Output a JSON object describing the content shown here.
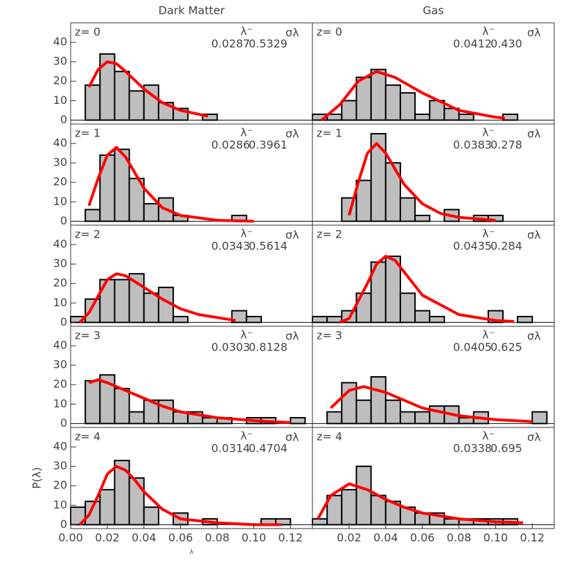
{
  "chart_data": [
    {
      "type": "histogram",
      "title": "Dark Matter",
      "annotation": "z= 0",
      "lambda_header": "λ⁻",
      "sigma_header": "σλ",
      "lambda": {
        "value": 0.0287,
        "label": "0.0287"
      },
      "sigma": {
        "value": 0.5329,
        "label": "0.5329"
      },
      "bins": [
        0,
        0.008,
        0.016,
        0.024,
        0.032,
        0.04,
        0.048,
        0.056,
        0.064,
        0.072,
        0.08,
        0.088,
        0.096,
        0.104,
        0.112,
        0.12,
        0.128
      ],
      "values": [
        0,
        18,
        34,
        25,
        15,
        18,
        9,
        6,
        0,
        3,
        0,
        0,
        0,
        0,
        0,
        0
      ],
      "fit": {
        "x": [
          0.01,
          0.015,
          0.02,
          0.025,
          0.03,
          0.04,
          0.05,
          0.06,
          0.075
        ],
        "y": [
          17,
          26,
          30,
          29,
          25,
          16,
          9,
          5,
          2
        ]
      },
      "color": "#bebebe",
      "fit_color": "#ff0000",
      "xlim": [
        0,
        0.132
      ],
      "ylim": [
        -2,
        50
      ],
      "yticks": [
        0,
        10,
        20,
        30,
        40
      ]
    },
    {
      "type": "histogram",
      "title": "Gas",
      "annotation": "z= 0",
      "lambda_header": "λ⁻",
      "sigma_header": "σλ",
      "lambda": {
        "value": 0.0412,
        "label": "0.0412"
      },
      "sigma": {
        "value": 0.43,
        "label": "0.430"
      },
      "bins": [
        0,
        0.008,
        0.016,
        0.024,
        0.032,
        0.04,
        0.048,
        0.056,
        0.064,
        0.072,
        0.08,
        0.088,
        0.096,
        0.104,
        0.112,
        0.12,
        0.128
      ],
      "values": [
        3,
        3,
        10,
        22,
        26,
        18,
        14,
        3,
        10,
        6,
        3,
        0,
        0,
        3,
        0,
        0
      ],
      "fit": {
        "x": [
          0.005,
          0.015,
          0.025,
          0.035,
          0.045,
          0.06,
          0.08,
          0.1,
          0.105
        ],
        "y": [
          0,
          8,
          20,
          25,
          22,
          14,
          5,
          1.5,
          1
        ]
      },
      "color": "#bebebe",
      "fit_color": "#ff0000",
      "xlim": [
        0,
        0.132
      ],
      "ylim": [
        -2,
        50
      ]
    },
    {
      "type": "histogram",
      "annotation": "z= 1",
      "lambda_header": "λ⁻",
      "sigma_header": "σλ",
      "lambda": {
        "value": 0.0286,
        "label": "0.0286"
      },
      "sigma": {
        "value": 0.3961,
        "label": "0.3961"
      },
      "bins": [
        0,
        0.008,
        0.016,
        0.024,
        0.032,
        0.04,
        0.048,
        0.056,
        0.064,
        0.072,
        0.08,
        0.088,
        0.096,
        0.104,
        0.112,
        0.12,
        0.128
      ],
      "values": [
        0,
        6,
        34,
        37,
        22,
        9,
        12,
        3,
        0,
        0,
        0,
        3,
        0,
        0,
        0,
        0
      ],
      "fit": {
        "x": [
          0.01,
          0.015,
          0.02,
          0.025,
          0.03,
          0.04,
          0.05,
          0.06,
          0.08,
          0.1
        ],
        "y": [
          8,
          22,
          34,
          38,
          33,
          17,
          7,
          3,
          0.5,
          0
        ]
      },
      "color": "#bebebe",
      "fit_color": "#ff0000",
      "xlim": [
        0,
        0.132
      ],
      "ylim": [
        -2,
        50
      ],
      "yticks": [
        0,
        10,
        20,
        30,
        40
      ]
    },
    {
      "type": "histogram",
      "annotation": "z= 1",
      "lambda_header": "λ⁻",
      "sigma_header": "σλ",
      "lambda": {
        "value": 0.0383,
        "label": "0.0383"
      },
      "sigma": {
        "value": 0.278,
        "label": "0.278"
      },
      "bins": [
        0,
        0.008,
        0.016,
        0.024,
        0.032,
        0.04,
        0.048,
        0.056,
        0.064,
        0.072,
        0.08,
        0.088,
        0.096,
        0.104,
        0.112,
        0.12,
        0.128
      ],
      "values": [
        0,
        0,
        12,
        21,
        45,
        30,
        12,
        3,
        0,
        6,
        0,
        3,
        3,
        0,
        0,
        0
      ],
      "fit": {
        "x": [
          0.02,
          0.025,
          0.03,
          0.035,
          0.04,
          0.05,
          0.06,
          0.07,
          0.08,
          0.1
        ],
        "y": [
          3,
          20,
          35,
          40,
          35,
          19,
          9,
          4,
          2,
          0.5
        ]
      },
      "color": "#bebebe",
      "fit_color": "#ff0000",
      "xlim": [
        0,
        0.132
      ],
      "ylim": [
        -2,
        50
      ]
    },
    {
      "type": "histogram",
      "annotation": "z= 2",
      "lambda_header": "λ⁻",
      "sigma_header": "σλ",
      "lambda": {
        "value": 0.0343,
        "label": "0.0343"
      },
      "sigma": {
        "value": 0.5614,
        "label": "0.5614"
      },
      "bins": [
        0,
        0.008,
        0.016,
        0.024,
        0.032,
        0.04,
        0.048,
        0.056,
        0.064,
        0.072,
        0.08,
        0.088,
        0.096,
        0.104,
        0.112,
        0.12,
        0.128
      ],
      "values": [
        3,
        12,
        22,
        22,
        25,
        15,
        18,
        3,
        0,
        0,
        0,
        6,
        3,
        0,
        0,
        0
      ],
      "fit": {
        "x": [
          0.005,
          0.01,
          0.02,
          0.025,
          0.03,
          0.04,
          0.05,
          0.06,
          0.07,
          0.09
        ],
        "y": [
          0,
          5,
          22,
          25,
          24,
          18,
          12,
          7,
          4,
          1
        ]
      },
      "color": "#bebebe",
      "fit_color": "#ff0000",
      "xlim": [
        0,
        0.132
      ],
      "ylim": [
        -2,
        50
      ],
      "yticks": [
        0,
        10,
        20,
        30,
        40
      ]
    },
    {
      "type": "histogram",
      "annotation": "z= 2",
      "lambda_header": "λ⁻",
      "sigma_header": "σλ",
      "lambda": {
        "value": 0.0435,
        "label": "0.0435"
      },
      "sigma": {
        "value": 0.284,
        "label": "0.284"
      },
      "bins": [
        0,
        0.008,
        0.016,
        0.024,
        0.032,
        0.04,
        0.048,
        0.056,
        0.064,
        0.072,
        0.08,
        0.088,
        0.096,
        0.104,
        0.112,
        0.12,
        0.128
      ],
      "values": [
        3,
        3,
        6,
        15,
        31,
        34,
        15,
        6,
        3,
        0,
        0,
        0,
        6,
        0,
        3,
        0
      ],
      "fit": {
        "x": [
          0.015,
          0.02,
          0.03,
          0.035,
          0.04,
          0.045,
          0.05,
          0.06,
          0.08,
          0.1,
          0.11
        ],
        "y": [
          0,
          2,
          20,
          30,
          34,
          32,
          26,
          14,
          4,
          1,
          0.5
        ]
      },
      "color": "#bebebe",
      "fit_color": "#ff0000",
      "xlim": [
        0,
        0.132
      ],
      "ylim": [
        -2,
        50
      ]
    },
    {
      "type": "histogram",
      "annotation": "z= 3",
      "lambda_header": "λ⁻",
      "sigma_header": "σλ",
      "lambda": {
        "value": 0.0303,
        "label": "0.0303"
      },
      "sigma": {
        "value": 0.8128,
        "label": "0.8128"
      },
      "bins": [
        0,
        0.008,
        0.016,
        0.024,
        0.032,
        0.04,
        0.048,
        0.056,
        0.064,
        0.072,
        0.08,
        0.088,
        0.096,
        0.104,
        0.112,
        0.12,
        0.128
      ],
      "values": [
        0,
        22,
        25,
        18,
        6,
        12,
        12,
        6,
        6,
        3,
        3,
        0,
        3,
        3,
        0,
        3
      ],
      "fit": {
        "x": [
          0.01,
          0.015,
          0.02,
          0.03,
          0.04,
          0.05,
          0.06,
          0.08,
          0.1,
          0.12
        ],
        "y": [
          21,
          22.5,
          21,
          17,
          13,
          9,
          6,
          3,
          1.5,
          0.5
        ]
      },
      "color": "#bebebe",
      "fit_color": "#ff0000",
      "xlim": [
        0,
        0.132
      ],
      "ylim": [
        -2,
        50
      ],
      "yticks": [
        0,
        10,
        20,
        30,
        40
      ]
    },
    {
      "type": "histogram",
      "annotation": "z= 3",
      "lambda_header": "λ⁻",
      "sigma_header": "σλ",
      "lambda": {
        "value": 0.0405,
        "label": "0.0405"
      },
      "sigma": {
        "value": 0.625,
        "label": "0.625"
      },
      "bins": [
        0,
        0.008,
        0.016,
        0.024,
        0.032,
        0.04,
        0.048,
        0.056,
        0.064,
        0.072,
        0.08,
        0.088,
        0.096,
        0.104,
        0.112,
        0.12,
        0.128
      ],
      "values": [
        0,
        6,
        21,
        12,
        24,
        12,
        6,
        6,
        9,
        9,
        3,
        6,
        0,
        0,
        0,
        6
      ],
      "fit": {
        "x": [
          0.01,
          0.02,
          0.028,
          0.04,
          0.05,
          0.06,
          0.08,
          0.1,
          0.12
        ],
        "y": [
          8,
          17,
          19,
          16,
          12,
          8,
          4,
          2,
          1
        ]
      },
      "color": "#bebebe",
      "fit_color": "#ff0000",
      "xlim": [
        0,
        0.132
      ],
      "ylim": [
        -2,
        50
      ]
    },
    {
      "type": "histogram",
      "annotation": "z= 4",
      "lambda_header": "λ⁻",
      "sigma_header": "σλ",
      "lambda": {
        "value": 0.0314,
        "label": "0.0314"
      },
      "sigma": {
        "value": 0.4704,
        "label": "0.4704"
      },
      "xlabel": "λ",
      "ylabel": "P(λ)",
      "bins": [
        0,
        0.008,
        0.016,
        0.024,
        0.032,
        0.04,
        0.048,
        0.056,
        0.064,
        0.072,
        0.08,
        0.088,
        0.096,
        0.104,
        0.112,
        0.12,
        0.128
      ],
      "values": [
        9,
        12,
        18,
        33,
        24,
        9,
        0,
        6,
        0,
        3,
        0,
        0,
        0,
        3,
        3,
        0
      ],
      "fit": {
        "x": [
          0.005,
          0.01,
          0.015,
          0.02,
          0.025,
          0.03,
          0.035,
          0.04,
          0.05,
          0.06,
          0.08,
          0.1,
          0.115
        ],
        "y": [
          0,
          5,
          15,
          26,
          30,
          28,
          23,
          17,
          8,
          3,
          1,
          0,
          0
        ]
      },
      "color": "#bebebe",
      "fit_color": "#ff0000",
      "xlim": [
        0,
        0.132
      ],
      "ylim": [
        -2,
        50
      ],
      "yticks": [
        0,
        10,
        20,
        30,
        40
      ],
      "xticks": [
        {
          "value": 0,
          "label": "0.00"
        },
        0.02,
        0.04,
        0.06,
        {
          "value": 0.08,
          "label": "0.08"
        },
        {
          "value": 0.1,
          "label": "0.10"
        },
        0.12
      ]
    },
    {
      "type": "histogram",
      "annotation": "z= 4",
      "lambda_header": "λ⁻",
      "sigma_header": "σλ",
      "lambda": {
        "value": 0.0338,
        "label": "0.0338"
      },
      "sigma": {
        "value": 0.695,
        "label": "0.695"
      },
      "bins": [
        0,
        0.008,
        0.016,
        0.024,
        0.032,
        0.04,
        0.048,
        0.056,
        0.064,
        0.072,
        0.08,
        0.088,
        0.096,
        0.104,
        0.112,
        0.12,
        0.128
      ],
      "values": [
        3,
        15,
        18,
        30,
        15,
        12,
        9,
        6,
        6,
        3,
        3,
        3,
        3,
        3,
        0,
        0
      ],
      "fit": {
        "x": [
          0.003,
          0.01,
          0.02,
          0.03,
          0.04,
          0.05,
          0.06,
          0.08,
          0.1,
          0.115
        ],
        "y": [
          3,
          15,
          21,
          18,
          13,
          9,
          6,
          3,
          1.5,
          1
        ]
      },
      "color": "#bebebe",
      "fit_color": "#ff0000",
      "xlim": [
        0,
        0.132
      ],
      "ylim": [
        -2,
        50
      ],
      "xticks": [
        0.02,
        0.04,
        0.06,
        {
          "value": 0.08,
          "label": "0.08"
        },
        {
          "value": 0.1,
          "label": "0.10"
        },
        0.12
      ]
    }
  ]
}
